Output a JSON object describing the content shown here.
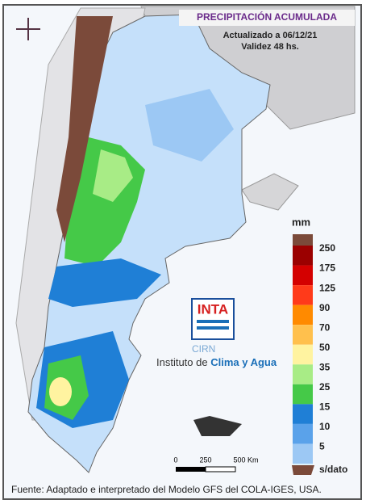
{
  "header": {
    "title": "PRECIPITACIÓN ACUMULADA",
    "updated": "Actualizado a 06/12/21",
    "validity": "Validez 48 hs."
  },
  "legend": {
    "unit": "mm",
    "items": [
      {
        "label": 250,
        "color": "#9b0000"
      },
      {
        "label": 175,
        "color": "#d40000"
      },
      {
        "label": 125,
        "color": "#ff3a1a"
      },
      {
        "label": 90,
        "color": "#ff8a00"
      },
      {
        "label": 70,
        "color": "#ffc04d"
      },
      {
        "label": 50,
        "color": "#fff3a0"
      },
      {
        "label": 35,
        "color": "#a8ec86"
      },
      {
        "label": 25,
        "color": "#45c948"
      },
      {
        "label": 15,
        "color": "#1f7fd6"
      },
      {
        "label": 10,
        "color": "#5aa2ea"
      },
      {
        "label": 5,
        "color": "#9cc8f4"
      }
    ],
    "no_data": "s/dato"
  },
  "scale_bar": {
    "labels": [
      "0",
      "250",
      "500 Km"
    ]
  },
  "logo": {
    "brand": "INTA",
    "sub": "CIRN",
    "institute_1": "Instituto de ",
    "institute_2": "Clima y Agua"
  },
  "footer": {
    "source": "Fuente: Adaptado e interpretado del Modelo GFS del COLA-IGES, USA."
  }
}
